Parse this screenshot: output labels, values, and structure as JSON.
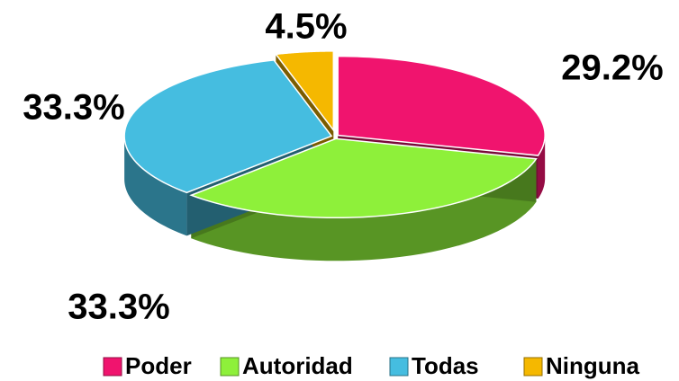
{
  "chart_data": {
    "type": "pie",
    "categories": [
      "Poder",
      "Autoridad",
      "Todas",
      "Ninguna"
    ],
    "values": [
      29.2,
      33.3,
      33.3,
      4.5
    ],
    "value_labels": [
      "29.2%",
      "33.3%",
      "33.3%",
      "4.5%"
    ],
    "colors": [
      "#f0146e",
      "#8ef03a",
      "#45bde0",
      "#f5b800"
    ],
    "legend": "bottom"
  }
}
